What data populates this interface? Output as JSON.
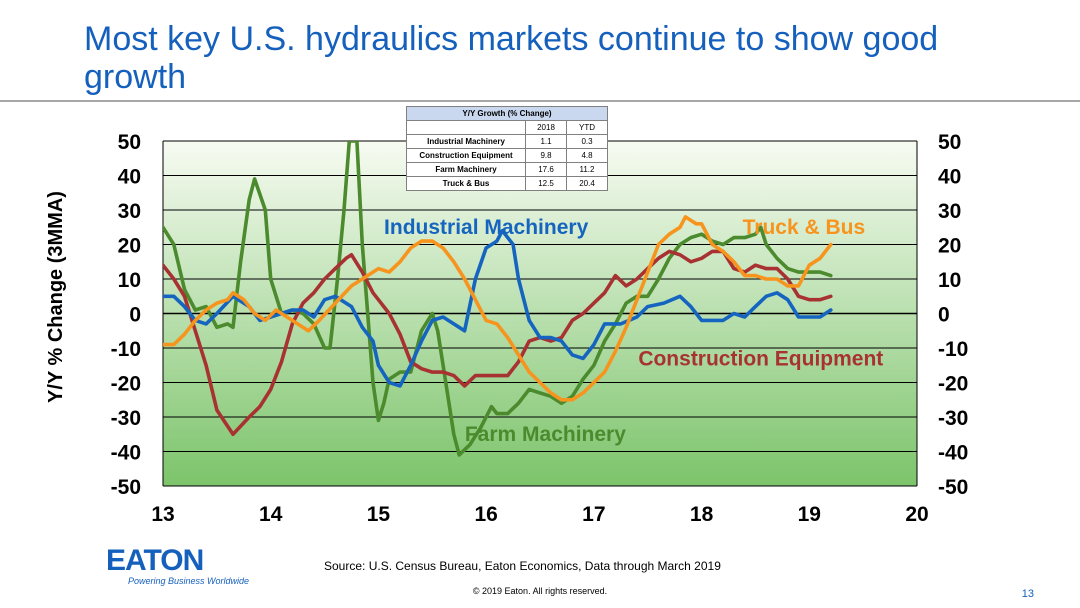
{
  "title": "Most key U.S. hydraulics markets continue to show good growth",
  "source": "Source: U.S. Census Bureau, Eaton Economics, Data through March 2019",
  "copyright": "© 2019 Eaton. All rights reserved.",
  "page_number": "13",
  "logo": {
    "name": "EATON",
    "tagline": "Powering Business Worldwide"
  },
  "growth_table": {
    "title": "Y/Y Growth (% Change)",
    "columns": [
      "2018",
      "YTD"
    ],
    "rows": [
      {
        "label": "Industrial Machinery",
        "values": [
          "1.1",
          "0.3"
        ]
      },
      {
        "label": "Construction Equipment",
        "values": [
          "9.8",
          "4.8"
        ]
      },
      {
        "label": "Farm Machinery",
        "values": [
          "17.6",
          "11.2"
        ]
      },
      {
        "label": "Truck & Bus",
        "values": [
          "12.5",
          "20.4"
        ]
      }
    ]
  },
  "chart_data": {
    "type": "line",
    "ylabel": "Y/Y % Change (3MMA)",
    "xlabel": "",
    "xlim": [
      13,
      20
    ],
    "ylim": [
      -50,
      50
    ],
    "x_ticks": [
      "13",
      "14",
      "15",
      "16",
      "17",
      "18",
      "19",
      "20"
    ],
    "y_ticks": [
      "50",
      "40",
      "30",
      "20",
      "10",
      "0",
      "-10",
      "-20",
      "-30",
      "-40",
      "-50"
    ],
    "grid": true,
    "colors": {
      "industrial": "#1565c0",
      "construction": "#a83232",
      "farm": "#4c8a2e",
      "truck": "#f7941d",
      "title": "#1560bd"
    },
    "series": [
      {
        "name": "Industrial Machinery",
        "color": "#1565c0",
        "points": [
          [
            13.0,
            5
          ],
          [
            13.1,
            5
          ],
          [
            13.2,
            2
          ],
          [
            13.3,
            -2
          ],
          [
            13.4,
            -3
          ],
          [
            13.5,
            0
          ],
          [
            13.65,
            5
          ],
          [
            13.8,
            2
          ],
          [
            13.9,
            -2
          ],
          [
            14.0,
            -1
          ],
          [
            14.1,
            0
          ],
          [
            14.2,
            1
          ],
          [
            14.3,
            1
          ],
          [
            14.4,
            -1
          ],
          [
            14.5,
            4
          ],
          [
            14.6,
            5
          ],
          [
            14.75,
            2
          ],
          [
            14.85,
            -4
          ],
          [
            14.95,
            -8
          ],
          [
            15.0,
            -15
          ],
          [
            15.1,
            -20
          ],
          [
            15.2,
            -21
          ],
          [
            15.3,
            -15
          ],
          [
            15.4,
            -8
          ],
          [
            15.5,
            -2
          ],
          [
            15.6,
            -1
          ],
          [
            15.7,
            -3
          ],
          [
            15.8,
            -5
          ],
          [
            15.9,
            10
          ],
          [
            16.0,
            19
          ],
          [
            16.1,
            21
          ],
          [
            16.15,
            24
          ],
          [
            16.25,
            20
          ],
          [
            16.3,
            10
          ],
          [
            16.4,
            -2
          ],
          [
            16.5,
            -7
          ],
          [
            16.6,
            -7
          ],
          [
            16.7,
            -8
          ],
          [
            16.8,
            -12
          ],
          [
            16.9,
            -13
          ],
          [
            17.0,
            -9
          ],
          [
            17.1,
            -3
          ],
          [
            17.25,
            -3
          ],
          [
            17.4,
            -1
          ],
          [
            17.5,
            2
          ],
          [
            17.65,
            3
          ],
          [
            17.8,
            5
          ],
          [
            17.9,
            2
          ],
          [
            18.0,
            -2
          ],
          [
            18.1,
            -2
          ],
          [
            18.2,
            -2
          ],
          [
            18.3,
            0
          ],
          [
            18.4,
            -1
          ],
          [
            18.5,
            2
          ],
          [
            18.6,
            5
          ],
          [
            18.7,
            6
          ],
          [
            18.8,
            4
          ],
          [
            18.9,
            -1
          ],
          [
            19.0,
            -1
          ],
          [
            19.1,
            -1
          ],
          [
            19.2,
            1
          ]
        ]
      },
      {
        "name": "Construction Equipment",
        "color": "#a83232",
        "points": [
          [
            13.0,
            14
          ],
          [
            13.1,
            10
          ],
          [
            13.2,
            5
          ],
          [
            13.3,
            -5
          ],
          [
            13.4,
            -15
          ],
          [
            13.5,
            -28
          ],
          [
            13.65,
            -35
          ],
          [
            13.8,
            -30
          ],
          [
            13.9,
            -27
          ],
          [
            14.0,
            -22
          ],
          [
            14.1,
            -14
          ],
          [
            14.2,
            -3
          ],
          [
            14.3,
            3
          ],
          [
            14.4,
            6
          ],
          [
            14.5,
            10
          ],
          [
            14.6,
            13
          ],
          [
            14.7,
            16
          ],
          [
            14.75,
            17
          ],
          [
            14.85,
            12
          ],
          [
            14.95,
            6
          ],
          [
            15.0,
            4
          ],
          [
            15.1,
            0
          ],
          [
            15.2,
            -6
          ],
          [
            15.3,
            -14
          ],
          [
            15.4,
            -16
          ],
          [
            15.5,
            -17
          ],
          [
            15.6,
            -17
          ],
          [
            15.7,
            -18
          ],
          [
            15.8,
            -21
          ],
          [
            15.9,
            -18
          ],
          [
            16.0,
            -18
          ],
          [
            16.1,
            -18
          ],
          [
            16.2,
            -18
          ],
          [
            16.3,
            -14
          ],
          [
            16.4,
            -8
          ],
          [
            16.5,
            -7
          ],
          [
            16.6,
            -8
          ],
          [
            16.7,
            -7
          ],
          [
            16.8,
            -2
          ],
          [
            16.9,
            0
          ],
          [
            17.0,
            3
          ],
          [
            17.1,
            6
          ],
          [
            17.2,
            11
          ],
          [
            17.3,
            8
          ],
          [
            17.4,
            10
          ],
          [
            17.5,
            13
          ],
          [
            17.6,
            16
          ],
          [
            17.7,
            18
          ],
          [
            17.8,
            17
          ],
          [
            17.9,
            15
          ],
          [
            18.0,
            16
          ],
          [
            18.1,
            18
          ],
          [
            18.2,
            18
          ],
          [
            18.3,
            13
          ],
          [
            18.4,
            12
          ],
          [
            18.5,
            14
          ],
          [
            18.6,
            13
          ],
          [
            18.7,
            13
          ],
          [
            18.8,
            10
          ],
          [
            18.9,
            5
          ],
          [
            19.0,
            4
          ],
          [
            19.1,
            4
          ],
          [
            19.2,
            5
          ]
        ]
      },
      {
        "name": "Farm Machinery",
        "color": "#4c8a2e",
        "points": [
          [
            13.0,
            25
          ],
          [
            13.1,
            20
          ],
          [
            13.2,
            7
          ],
          [
            13.3,
            1
          ],
          [
            13.4,
            2
          ],
          [
            13.5,
            -4
          ],
          [
            13.6,
            -3
          ],
          [
            13.65,
            -4
          ],
          [
            13.72,
            15
          ],
          [
            13.8,
            33
          ],
          [
            13.85,
            39
          ],
          [
            13.95,
            30
          ],
          [
            14.0,
            10
          ],
          [
            14.1,
            0
          ],
          [
            14.2,
            1
          ],
          [
            14.3,
            0
          ],
          [
            14.4,
            -3
          ],
          [
            14.5,
            -10
          ],
          [
            14.55,
            -10
          ],
          [
            14.62,
            10
          ],
          [
            14.68,
            30
          ],
          [
            14.73,
            50
          ],
          [
            14.8,
            50
          ],
          [
            14.85,
            20
          ],
          [
            14.9,
            0
          ],
          [
            14.95,
            -20
          ],
          [
            15.0,
            -31
          ],
          [
            15.05,
            -26
          ],
          [
            15.1,
            -19
          ],
          [
            15.2,
            -17
          ],
          [
            15.3,
            -17
          ],
          [
            15.4,
            -5
          ],
          [
            15.5,
            0
          ],
          [
            15.55,
            -5
          ],
          [
            15.6,
            -15
          ],
          [
            15.7,
            -35
          ],
          [
            15.75,
            -41
          ],
          [
            15.85,
            -38
          ],
          [
            15.95,
            -33
          ],
          [
            16.05,
            -27
          ],
          [
            16.1,
            -29
          ],
          [
            16.2,
            -29
          ],
          [
            16.3,
            -26
          ],
          [
            16.4,
            -22
          ],
          [
            16.5,
            -23
          ],
          [
            16.6,
            -24
          ],
          [
            16.7,
            -26
          ],
          [
            16.8,
            -24
          ],
          [
            16.9,
            -19
          ],
          [
            17.0,
            -15
          ],
          [
            17.1,
            -8
          ],
          [
            17.2,
            -3
          ],
          [
            17.3,
            3
          ],
          [
            17.4,
            5
          ],
          [
            17.5,
            5
          ],
          [
            17.6,
            10
          ],
          [
            17.7,
            16
          ],
          [
            17.8,
            20
          ],
          [
            17.9,
            22
          ],
          [
            18.0,
            23
          ],
          [
            18.1,
            21
          ],
          [
            18.2,
            20
          ],
          [
            18.3,
            22
          ],
          [
            18.4,
            22
          ],
          [
            18.5,
            23
          ],
          [
            18.55,
            25
          ],
          [
            18.6,
            20
          ],
          [
            18.7,
            16
          ],
          [
            18.8,
            13
          ],
          [
            18.9,
            12
          ],
          [
            19.0,
            12
          ],
          [
            19.1,
            12
          ],
          [
            19.2,
            11
          ]
        ]
      },
      {
        "name": "Truck & Bus",
        "color": "#f7941d",
        "points": [
          [
            13.0,
            -9
          ],
          [
            13.1,
            -9
          ],
          [
            13.2,
            -6
          ],
          [
            13.3,
            -2
          ],
          [
            13.4,
            1
          ],
          [
            13.5,
            3
          ],
          [
            13.6,
            4
          ],
          [
            13.65,
            6
          ],
          [
            13.75,
            4
          ],
          [
            13.85,
            0
          ],
          [
            13.95,
            -2
          ],
          [
            14.05,
            1
          ],
          [
            14.15,
            -1
          ],
          [
            14.25,
            -3
          ],
          [
            14.35,
            -5
          ],
          [
            14.45,
            -2
          ],
          [
            14.6,
            3
          ],
          [
            14.75,
            8
          ],
          [
            14.85,
            10
          ],
          [
            14.95,
            12
          ],
          [
            15.0,
            13
          ],
          [
            15.1,
            12
          ],
          [
            15.2,
            15
          ],
          [
            15.3,
            19
          ],
          [
            15.4,
            21
          ],
          [
            15.5,
            21
          ],
          [
            15.6,
            19
          ],
          [
            15.7,
            15
          ],
          [
            15.8,
            10
          ],
          [
            15.9,
            4
          ],
          [
            16.0,
            -2
          ],
          [
            16.1,
            -3
          ],
          [
            16.2,
            -7
          ],
          [
            16.3,
            -12
          ],
          [
            16.4,
            -17
          ],
          [
            16.5,
            -20
          ],
          [
            16.6,
            -23
          ],
          [
            16.7,
            -25
          ],
          [
            16.8,
            -25
          ],
          [
            16.9,
            -23
          ],
          [
            17.0,
            -20
          ],
          [
            17.1,
            -17
          ],
          [
            17.2,
            -11
          ],
          [
            17.3,
            -4
          ],
          [
            17.4,
            4
          ],
          [
            17.5,
            12
          ],
          [
            17.6,
            20
          ],
          [
            17.7,
            23
          ],
          [
            17.8,
            25
          ],
          [
            17.85,
            28
          ],
          [
            17.95,
            26
          ],
          [
            18.0,
            26
          ],
          [
            18.1,
            20
          ],
          [
            18.2,
            18
          ],
          [
            18.3,
            15
          ],
          [
            18.4,
            11
          ],
          [
            18.5,
            11
          ],
          [
            18.6,
            10
          ],
          [
            18.7,
            10
          ],
          [
            18.8,
            8
          ],
          [
            18.9,
            8
          ],
          [
            19.0,
            14
          ],
          [
            19.1,
            16
          ],
          [
            19.2,
            20
          ]
        ]
      }
    ],
    "annotations": [
      {
        "text": "Industrial Machinery",
        "x": 16.0,
        "y": 23,
        "color": "#1565c0"
      },
      {
        "text": "Truck & Bus",
        "x": 18.95,
        "y": 23,
        "color": "#f7941d"
      },
      {
        "text": "Construction Equipment",
        "x": 18.55,
        "y": -15,
        "color": "#a83232"
      },
      {
        "text": "Farm Machinery",
        "x": 16.55,
        "y": -37,
        "color": "#4c8a2e"
      }
    ]
  }
}
